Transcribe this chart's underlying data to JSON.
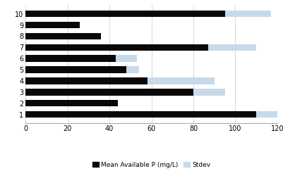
{
  "categories": [
    1,
    2,
    3,
    4,
    5,
    6,
    7,
    8,
    9,
    10
  ],
  "mean_values": [
    110,
    44,
    80,
    58,
    48,
    43,
    87,
    36,
    26,
    95
  ],
  "stdev_values": [
    125,
    44,
    95,
    90,
    54,
    53,
    110,
    36,
    26,
    117
  ],
  "bar_color_mean": "#080808",
  "bar_color_stdev": "#c8daea",
  "xlim": [
    0,
    120
  ],
  "xticks": [
    0,
    20,
    40,
    60,
    80,
    100,
    120
  ],
  "legend_mean": "Mean Available P (mg/L)",
  "legend_stdev": "Stdev",
  "bar_height": 0.6,
  "grid_color": "#d0d0d0",
  "background_color": "#ffffff",
  "tick_fontsize": 7,
  "legend_fontsize": 6.5
}
